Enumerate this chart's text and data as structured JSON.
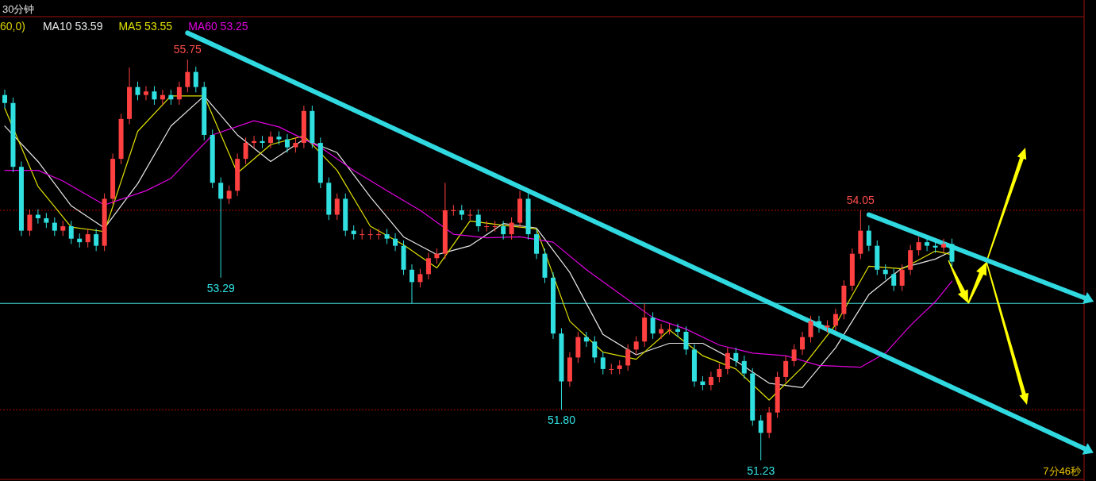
{
  "chart_data": {
    "type": "candlestick",
    "title": "30分钟",
    "categories": [
      null,
      null,
      null,
      null,
      null,
      null,
      null,
      null,
      null,
      null,
      null,
      null,
      null,
      null,
      null,
      null,
      null,
      null,
      null,
      null,
      null,
      null,
      null,
      null,
      null,
      null,
      null,
      null,
      null,
      null,
      null,
      null,
      null,
      null,
      null,
      null,
      null,
      null,
      null,
      null,
      null,
      null,
      null,
      null,
      null,
      null,
      null,
      null,
      null,
      null,
      null,
      null,
      null,
      null,
      null,
      null,
      null,
      null,
      null,
      null,
      null,
      null,
      null,
      null,
      null,
      null,
      null,
      null,
      null,
      null,
      null,
      null,
      null,
      null,
      null,
      null,
      null,
      null,
      null,
      null,
      null,
      null,
      null,
      null,
      null,
      null,
      null,
      null,
      null,
      null,
      null,
      null,
      null,
      null,
      null,
      null,
      null,
      null,
      null,
      null,
      null,
      null,
      null,
      null,
      null,
      null,
      null,
      null,
      null,
      null,
      null,
      null,
      null,
      null,
      null,
      null,
      null,
      null,
      null,
      null,
      null,
      null,
      null,
      null,
      null,
      null,
      null,
      null,
      null,
      null,
      null
    ],
    "colors": [
      "#30e0e0",
      "#30e0e0",
      "#30e0e0",
      "#ff4040",
      "#30e0e0",
      "#30e0e0",
      "#30e0e0",
      "#ff4040",
      "#30e0e0",
      "#30e0e0",
      "#ff4040",
      "#30e0e0",
      "#ff4040",
      "#ff4040",
      "#ff4040",
      "#ff4040",
      "#30e0e0",
      "#ff4040",
      "#30e0e0",
      "#ff4040",
      "#30e0e0",
      "#ff4040",
      "#ff4040",
      "#30e0e0",
      "#30e0e0",
      "#30e0e0",
      "#30e0e0",
      "#ff4040",
      "#ff4040",
      "#ff4040",
      "#ff4040",
      "#30e0e0",
      "#ff4040",
      "#30e0e0",
      "#30e0e0",
      "#ff4040",
      "#ff4040",
      "#30e0e0",
      "#30e0e0",
      "#30e0e0",
      "#ff4040",
      "#30e0e0",
      "#30e0e0",
      "#ff4040",
      "#ff4040",
      "#ff4040",
      "#30e0e0",
      "#30e0e0",
      "#30e0e0",
      "#30e0e0",
      "#ff4040",
      "#ff4040",
      "#ff4040",
      "#ff4040",
      "#ff4040",
      "#30e0e0",
      "#ff4040",
      "#30e0e0",
      "#ff4040",
      "#ff4040",
      "#30e0e0",
      "#ff4040",
      "#ff4040",
      "#30e0e0",
      "#30e0e0",
      "#30e0e0",
      "#30e0e0",
      "#30e0e0",
      "#ff4040",
      "#ff4040",
      "#30e0e0",
      "#30e0e0",
      "#30e0e0",
      "#ff4040",
      "#ff4040",
      "#ff4040",
      "#ff4040",
      "#ff4040",
      "#30e0e0",
      "#ff4040",
      "#ff4040",
      "#30e0e0",
      "#30e0e0",
      "#30e0e0",
      "#30e0e0",
      "#ff4040",
      "#ff4040",
      "#ff4040",
      "#30e0e0",
      "#30e0e0",
      "#30e0e0",
      "#30e0e0",
      "#ff4040",
      "#ff4040",
      "#ff4040",
      "#ff4040",
      "#ff4040",
      "#ff4040",
      "#30e0e0",
      "#ff4040",
      "#ff4040",
      "#ff4040",
      "#ff4040",
      "#ff4040",
      "#30e0e0",
      "#30e0e0",
      "#30e0e0",
      "#30e0e0",
      "#ff4040",
      "#ff4040",
      "#ff4040",
      "#30e0e0",
      "#30e0e0",
      "#ff4040",
      "#30e0e0",
      null,
      null,
      null,
      null,
      null,
      null,
      null,
      null,
      null,
      null,
      null,
      null,
      null,
      null,
      null,
      null
    ],
    "ohlc": [
      [
        55.35,
        55.41,
        55.2,
        55.26
      ],
      [
        55.26,
        55.32,
        54.48,
        54.54
      ],
      [
        54.54,
        54.6,
        53.76,
        53.82
      ],
      [
        53.82,
        54.06,
        53.76,
        54.0
      ],
      [
        54.0,
        54.06,
        53.9,
        53.96
      ],
      [
        53.96,
        54.02,
        53.85,
        53.91
      ],
      [
        53.91,
        53.97,
        53.76,
        53.82
      ],
      [
        53.82,
        53.93,
        53.76,
        53.87
      ],
      [
        53.87,
        53.93,
        53.67,
        53.73
      ],
      [
        53.73,
        53.79,
        53.63,
        53.69
      ],
      [
        53.69,
        53.84,
        53.63,
        53.78
      ],
      [
        53.78,
        53.84,
        53.59,
        53.65
      ],
      [
        53.65,
        54.24,
        53.59,
        54.18
      ],
      [
        54.18,
        54.69,
        54.12,
        54.63
      ],
      [
        54.63,
        55.14,
        54.57,
        55.08
      ],
      [
        55.08,
        55.66,
        55.02,
        55.44
      ],
      [
        55.44,
        55.5,
        55.29,
        55.35
      ],
      [
        55.35,
        55.45,
        55.29,
        55.39
      ],
      [
        55.39,
        55.45,
        55.24,
        55.3
      ],
      [
        55.3,
        55.41,
        55.24,
        55.35
      ],
      [
        55.35,
        55.41,
        55.24,
        55.3
      ],
      [
        55.3,
        55.5,
        55.24,
        55.44
      ],
      [
        55.44,
        55.75,
        55.38,
        55.61
      ],
      [
        55.61,
        55.67,
        55.38,
        55.44
      ],
      [
        55.44,
        55.5,
        54.84,
        54.9
      ],
      [
        54.9,
        54.96,
        54.3,
        54.36
      ],
      [
        54.36,
        54.42,
        53.29,
        54.18
      ],
      [
        54.18,
        54.33,
        54.12,
        54.27
      ],
      [
        54.27,
        54.69,
        54.21,
        54.63
      ],
      [
        54.63,
        54.87,
        54.57,
        54.81
      ],
      [
        54.81,
        54.89,
        54.75,
        54.83
      ],
      [
        54.83,
        54.89,
        54.75,
        54.81
      ],
      [
        54.81,
        54.94,
        54.75,
        54.88
      ],
      [
        54.88,
        54.94,
        54.79,
        54.85
      ],
      [
        54.85,
        54.91,
        54.7,
        54.76
      ],
      [
        54.76,
        54.87,
        54.7,
        54.81
      ],
      [
        54.81,
        55.23,
        54.75,
        55.17
      ],
      [
        55.17,
        55.23,
        54.75,
        54.81
      ],
      [
        54.81,
        54.87,
        54.3,
        54.36
      ],
      [
        54.36,
        54.42,
        53.94,
        54.0
      ],
      [
        54.0,
        54.24,
        53.94,
        54.18
      ],
      [
        54.18,
        54.24,
        53.76,
        53.82
      ],
      [
        53.82,
        53.88,
        53.72,
        53.78
      ],
      [
        53.78,
        53.84,
        53.72,
        53.78
      ],
      [
        53.78,
        53.84,
        53.72,
        53.78
      ],
      [
        53.78,
        53.84,
        53.72,
        53.78
      ],
      [
        53.78,
        53.84,
        53.67,
        53.73
      ],
      [
        53.73,
        53.79,
        53.59,
        53.65
      ],
      [
        53.65,
        53.71,
        53.32,
        53.38
      ],
      [
        53.38,
        53.44,
        53.0,
        53.24
      ],
      [
        53.24,
        53.39,
        53.18,
        53.33
      ],
      [
        53.33,
        53.57,
        53.27,
        53.51
      ],
      [
        53.51,
        53.62,
        53.45,
        53.56
      ],
      [
        53.56,
        54.36,
        53.5,
        54.05
      ],
      [
        54.05,
        54.11,
        53.99,
        54.05
      ],
      [
        54.05,
        54.11,
        53.94,
        54.0
      ],
      [
        54.0,
        54.06,
        53.94,
        54.0
      ],
      [
        54.0,
        54.06,
        53.81,
        53.87
      ],
      [
        53.87,
        53.93,
        53.81,
        53.87
      ],
      [
        53.87,
        53.93,
        53.81,
        53.87
      ],
      [
        53.87,
        53.93,
        53.72,
        53.78
      ],
      [
        53.78,
        53.97,
        53.72,
        53.91
      ],
      [
        53.91,
        54.27,
        53.85,
        54.18
      ],
      [
        54.18,
        54.24,
        53.72,
        53.78
      ],
      [
        53.78,
        53.84,
        53.5,
        53.56
      ],
      [
        53.56,
        53.62,
        53.23,
        53.29
      ],
      [
        53.29,
        53.35,
        52.6,
        52.66
      ],
      [
        52.66,
        52.72,
        51.8,
        52.12
      ],
      [
        52.12,
        52.45,
        52.06,
        52.39
      ],
      [
        52.39,
        52.68,
        52.33,
        52.62
      ],
      [
        52.62,
        52.68,
        52.51,
        52.57
      ],
      [
        52.57,
        52.63,
        52.33,
        52.39
      ],
      [
        52.39,
        52.45,
        52.2,
        52.26
      ],
      [
        52.26,
        52.32,
        52.2,
        52.26
      ],
      [
        52.26,
        52.36,
        52.2,
        52.3
      ],
      [
        52.3,
        52.54,
        52.24,
        52.48
      ],
      [
        52.48,
        52.63,
        52.42,
        52.57
      ],
      [
        52.57,
        53.0,
        52.51,
        52.84
      ],
      [
        52.84,
        52.9,
        52.6,
        52.66
      ],
      [
        52.66,
        52.77,
        52.6,
        52.71
      ],
      [
        52.71,
        52.77,
        52.65,
        52.71
      ],
      [
        52.71,
        52.77,
        52.62,
        52.68
      ],
      [
        52.68,
        52.74,
        52.42,
        52.48
      ],
      [
        52.48,
        52.54,
        52.06,
        52.12
      ],
      [
        52.12,
        52.18,
        52.02,
        52.08
      ],
      [
        52.08,
        52.23,
        52.02,
        52.17
      ],
      [
        52.17,
        52.32,
        52.11,
        52.26
      ],
      [
        52.26,
        52.5,
        52.2,
        52.44
      ],
      [
        52.44,
        52.5,
        52.29,
        52.35
      ],
      [
        52.35,
        52.41,
        52.15,
        52.21
      ],
      [
        52.21,
        52.27,
        51.62,
        51.68
      ],
      [
        51.68,
        51.74,
        51.23,
        51.54
      ],
      [
        51.54,
        51.83,
        51.48,
        51.77
      ],
      [
        51.77,
        52.23,
        51.71,
        52.17
      ],
      [
        52.17,
        52.41,
        52.11,
        52.35
      ],
      [
        52.35,
        52.54,
        52.29,
        52.48
      ],
      [
        52.48,
        52.68,
        52.42,
        52.62
      ],
      [
        52.62,
        52.86,
        52.56,
        52.8
      ],
      [
        52.8,
        52.86,
        52.67,
        52.73
      ],
      [
        52.73,
        52.81,
        52.67,
        52.75
      ],
      [
        52.75,
        52.94,
        52.69,
        52.88
      ],
      [
        52.88,
        53.26,
        52.82,
        53.2
      ],
      [
        53.2,
        53.62,
        53.14,
        53.56
      ],
      [
        53.56,
        54.05,
        53.5,
        53.82
      ],
      [
        53.82,
        53.88,
        53.59,
        53.65
      ],
      [
        53.65,
        53.71,
        53.32,
        53.38
      ],
      [
        53.38,
        53.44,
        53.27,
        53.33
      ],
      [
        53.33,
        53.39,
        53.14,
        53.2
      ],
      [
        53.2,
        53.44,
        53.14,
        53.38
      ],
      [
        53.38,
        53.66,
        53.32,
        53.6
      ],
      [
        53.6,
        53.75,
        53.54,
        53.69
      ],
      [
        53.69,
        53.75,
        53.59,
        53.65
      ],
      [
        53.65,
        53.71,
        53.57,
        53.63
      ],
      [
        53.63,
        53.73,
        53.57,
        53.67
      ],
      [
        53.67,
        53.73,
        53.41,
        53.47
      ],
      null,
      null,
      null,
      null,
      null,
      null,
      null,
      null,
      null,
      null,
      null,
      null,
      null,
      null,
      null,
      null
    ],
    "series": [
      {
        "type": "line",
        "name": "MA10 53.59",
        "color": "#e8e8e8",
        "values": [
          55.0,
          null,
          null,
          null,
          54.6,
          null,
          null,
          null,
          54.1,
          null,
          null,
          null,
          53.85,
          null,
          null,
          null,
          54.35,
          null,
          null,
          null,
          55.0,
          null,
          null,
          null,
          55.34,
          null,
          null,
          null,
          54.9,
          null,
          null,
          null,
          54.6,
          null,
          null,
          null,
          54.85,
          null,
          null,
          null,
          54.7,
          null,
          null,
          null,
          54.2,
          null,
          null,
          null,
          53.75,
          null,
          null,
          null,
          53.55,
          null,
          null,
          null,
          53.65,
          null,
          null,
          null,
          53.9,
          null,
          null,
          null,
          53.85,
          null,
          null,
          null,
          53.35,
          null,
          null,
          null,
          52.65,
          null,
          null,
          null,
          52.42,
          null,
          null,
          null,
          52.55,
          null,
          null,
          null,
          52.55,
          null,
          null,
          null,
          52.35,
          null,
          null,
          null,
          52.1,
          null,
          null,
          null,
          52.05,
          null,
          null,
          null,
          52.5,
          null,
          null,
          null,
          53.1,
          null,
          null,
          null,
          53.4,
          null,
          null,
          null,
          53.5,
          null,
          53.59,
          null,
          null,
          null,
          null,
          null,
          null,
          null,
          null,
          null,
          null,
          null,
          null,
          null,
          null,
          null,
          null
        ]
      },
      {
        "type": "line",
        "name": "MA5 53.55",
        "color": "#e0e000",
        "values": [
          55.2,
          null,
          null,
          null,
          54.32,
          null,
          null,
          null,
          53.86,
          null,
          null,
          null,
          53.81,
          null,
          null,
          null,
          54.94,
          null,
          null,
          null,
          55.34,
          null,
          null,
          null,
          55.34,
          null,
          null,
          null,
          54.47,
          null,
          null,
          null,
          54.79,
          null,
          null,
          null,
          54.89,
          null,
          null,
          null,
          54.5,
          null,
          null,
          null,
          53.87,
          null,
          null,
          null,
          53.66,
          null,
          null,
          null,
          53.4,
          null,
          null,
          null,
          53.93,
          null,
          null,
          null,
          53.88,
          null,
          null,
          null,
          53.84,
          null,
          null,
          null,
          52.8,
          null,
          null,
          null,
          52.45,
          null,
          null,
          null,
          52.37,
          null,
          null,
          null,
          52.7,
          null,
          null,
          null,
          52.41,
          null,
          null,
          null,
          52.26,
          null,
          null,
          null,
          51.91,
          null,
          null,
          null,
          52.28,
          null,
          null,
          null,
          52.76,
          null,
          null,
          null,
          53.42,
          null,
          null,
          null,
          53.39,
          null,
          null,
          null,
          53.59,
          null,
          53.55,
          null,
          null,
          null,
          null,
          null,
          null,
          null,
          null,
          null,
          null,
          null,
          null,
          null,
          null,
          null,
          null
        ]
      },
      {
        "type": "line",
        "name": "MA60 53.25",
        "color": "#e000e0",
        "values": [
          54.5,
          null,
          null,
          null,
          54.5,
          null,
          null,
          54.38,
          null,
          null,
          null,
          null,
          54.11,
          null,
          null,
          null,
          null,
          54.27,
          null,
          null,
          54.41,
          null,
          null,
          null,
          null,
          54.9,
          null,
          null,
          null,
          null,
          55.06,
          null,
          null,
          54.99,
          null,
          null,
          null,
          null,
          54.76,
          null,
          null,
          null,
          54.5,
          null,
          null,
          null,
          54.27,
          null,
          null,
          null,
          54.05,
          null,
          null,
          null,
          53.78,
          null,
          null,
          null,
          53.74,
          null,
          null,
          null,
          53.75,
          null,
          null,
          null,
          53.69,
          null,
          null,
          null,
          53.38,
          null,
          null,
          null,
          53.11,
          null,
          null,
          null,
          52.84,
          null,
          null,
          null,
          52.71,
          null,
          null,
          null,
          52.53,
          null,
          null,
          null,
          52.44,
          null,
          null,
          null,
          52.41,
          null,
          null,
          null,
          52.3,
          null,
          null,
          null,
          null,
          52.28,
          null,
          null,
          52.44,
          null,
          null,
          52.75,
          null,
          null,
          53.02,
          null,
          53.25,
          null,
          null,
          null,
          null,
          null,
          null,
          null,
          null,
          null,
          null,
          null,
          null,
          null,
          null,
          null,
          null
        ]
      },
      {
        "type": "line",
        "color": "#30d8e0",
        "values": [
          null,
          null,
          null,
          null,
          null,
          null,
          null,
          null,
          null,
          null,
          null,
          null,
          null,
          null,
          null,
          null,
          null,
          null,
          null,
          null,
          null,
          null,
          56.05,
          null,
          null,
          null,
          null,
          null,
          null,
          null,
          null,
          null,
          null,
          null,
          null,
          null,
          null,
          null,
          null,
          null,
          null,
          null,
          null,
          null,
          null,
          null,
          null,
          null,
          null,
          null,
          null,
          null,
          null,
          null,
          null,
          null,
          null,
          null,
          null,
          null,
          null,
          null,
          null,
          null,
          null,
          null,
          null,
          null,
          null,
          null,
          null,
          null,
          null,
          null,
          null,
          null,
          null,
          null,
          null,
          null,
          null,
          null,
          null,
          null,
          null,
          null,
          null,
          null,
          null,
          null,
          null,
          null,
          null,
          null,
          null,
          null,
          null,
          null,
          null,
          null,
          null,
          null,
          null,
          null,
          null,
          null,
          null,
          null,
          null,
          null,
          null,
          null,
          null,
          null,
          null,
          null,
          null,
          null,
          null,
          null,
          null,
          null,
          null,
          null,
          null,
          null,
          null,
          null,
          null,
          null,
          51.36
        ]
      },
      {
        "type": "line",
        "color": "#30d8e0",
        "values": [
          null,
          null,
          null,
          null,
          null,
          null,
          null,
          null,
          null,
          null,
          null,
          null,
          null,
          null,
          null,
          null,
          null,
          null,
          null,
          null,
          null,
          null,
          null,
          null,
          null,
          null,
          null,
          null,
          null,
          null,
          null,
          null,
          null,
          null,
          null,
          null,
          null,
          null,
          null,
          null,
          null,
          null,
          null,
          null,
          null,
          null,
          null,
          null,
          null,
          null,
          null,
          null,
          null,
          null,
          null,
          null,
          null,
          null,
          null,
          null,
          null,
          null,
          null,
          null,
          null,
          null,
          null,
          null,
          null,
          null,
          null,
          null,
          null,
          null,
          null,
          null,
          null,
          null,
          null,
          null,
          null,
          null,
          null,
          null,
          null,
          null,
          null,
          null,
          null,
          null,
          null,
          null,
          null,
          null,
          null,
          null,
          null,
          null,
          null,
          null,
          null,
          null,
          null,
          null,
          54.0,
          null,
          null,
          null,
          null,
          null,
          null,
          null,
          null,
          null,
          null,
          null,
          null,
          null,
          null,
          null,
          null,
          null,
          null,
          null,
          null,
          null,
          null,
          null,
          null,
          null,
          53.06
        ]
      }
    ],
    "legend": "top left",
    "ref_lines": [
      {
        "axis": "y",
        "value": 54.05,
        "color": "#b00000",
        "line_style": "dotted"
      },
      {
        "axis": "y",
        "value": 51.8,
        "color": "#b00000",
        "line_style": "dotted"
      },
      {
        "axis": "y",
        "value": 53.0,
        "color": "#40e0e0",
        "line_style": "solid"
      }
    ],
    "annotations": [
      "60,0)",
      {
        "text": "55.75",
        "y": 55.75
      },
      {
        "text": "53.29",
        "y": 53.29
      },
      {
        "text": "51.80",
        "y": 51.8
      },
      {
        "text": "54.05",
        "y": 54.05
      },
      {
        "text": "51.23",
        "y": 51.23
      },
      "7分46秒"
    ]
  }
}
